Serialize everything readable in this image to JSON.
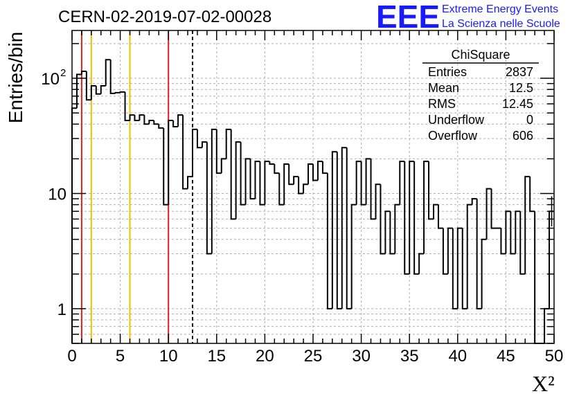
{
  "title": "CERN-02-2019-07-02-00028",
  "logo": {
    "mark": "EEE",
    "line1": "Extreme Energy Events",
    "line2": "La Scienza nelle Scuole"
  },
  "stats": {
    "title": "ChiSquare",
    "rows": [
      {
        "label": "Entries",
        "value": "2837"
      },
      {
        "label": "Mean",
        "value": "12.5"
      },
      {
        "label": "RMS",
        "value": "12.45"
      },
      {
        "label": "Underflow",
        "value": "0"
      },
      {
        "label": "Overflow",
        "value": "606"
      }
    ]
  },
  "chart_data": {
    "type": "bar",
    "histogram": true,
    "ylabel": "Entries/bin",
    "xlabel": "X²",
    "xlim": [
      0,
      50
    ],
    "ylim": [
      0.5,
      260
    ],
    "ylog": true,
    "grid": true,
    "bin_width": 0.5,
    "x_ticks": [
      0,
      5,
      10,
      15,
      20,
      25,
      30,
      35,
      40,
      45,
      50
    ],
    "y_ticks": [
      {
        "value": 1,
        "label": "1"
      },
      {
        "value": 10,
        "label": "10"
      },
      {
        "value": 100,
        "label": "10",
        "sup": "2"
      }
    ],
    "values": [
      55,
      108,
      115,
      65,
      86,
      73,
      86,
      145,
      74,
      75,
      76,
      43,
      48,
      43,
      48,
      40,
      43,
      40,
      37,
      8,
      43,
      38,
      48,
      11,
      14,
      36,
      25,
      28,
      3,
      36,
      15,
      20,
      36,
      6,
      28,
      8,
      20,
      9,
      19,
      8,
      19,
      18,
      15,
      8,
      18,
      12,
      14,
      10,
      12,
      18,
      13,
      19,
      15,
      1,
      23,
      1,
      25,
      1,
      8,
      19,
      8,
      20,
      6,
      12,
      3,
      7,
      3,
      8,
      19,
      2,
      19,
      2,
      3,
      19,
      6,
      8,
      5,
      2,
      5,
      1,
      5,
      1,
      8,
      9,
      1,
      4,
      11,
      5,
      5,
      3,
      7,
      3,
      7,
      2,
      14,
      7,
      0.3,
      0.3,
      1,
      7
    ],
    "reference_lines": [
      {
        "x": 1,
        "color": "#e02020",
        "style": "solid"
      },
      {
        "x": 2,
        "color": "#f0c000",
        "style": "solid"
      },
      {
        "x": 6,
        "color": "#f0c000",
        "style": "solid"
      },
      {
        "x": 10,
        "color": "#e02020",
        "style": "solid"
      },
      {
        "x": 12.5,
        "color": "#000000",
        "style": "dashed"
      }
    ]
  }
}
